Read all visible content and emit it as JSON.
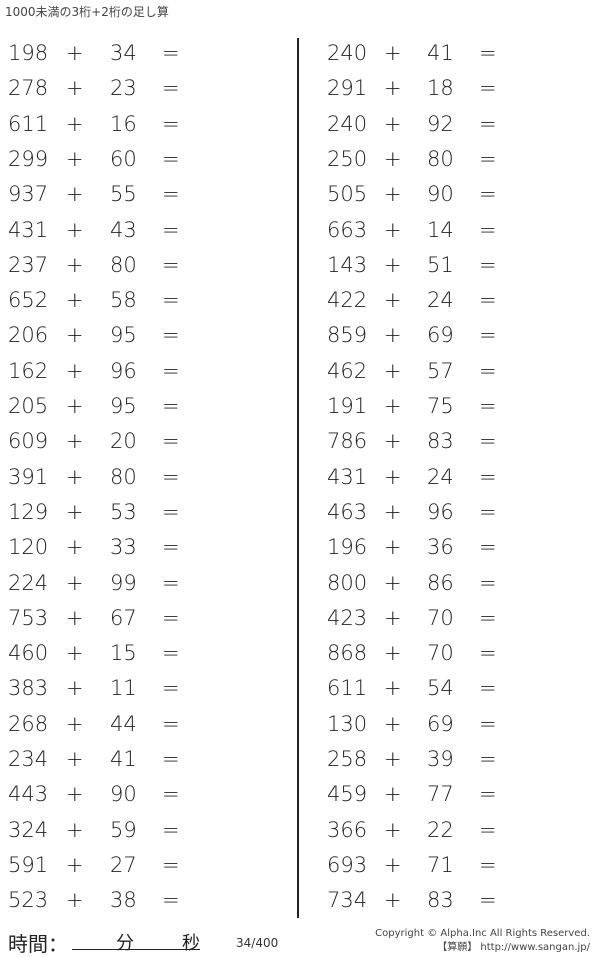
{
  "title": "1000未満の3桁+2桁の足し算",
  "operator": "+",
  "equals": "=",
  "left_column": [
    [
      "198",
      "34"
    ],
    [
      "278",
      "23"
    ],
    [
      "611",
      "16"
    ],
    [
      "299",
      "60"
    ],
    [
      "937",
      "55"
    ],
    [
      "431",
      "43"
    ],
    [
      "237",
      "80"
    ],
    [
      "652",
      "58"
    ],
    [
      "206",
      "95"
    ],
    [
      "162",
      "96"
    ],
    [
      "205",
      "95"
    ],
    [
      "609",
      "20"
    ],
    [
      "391",
      "80"
    ],
    [
      "129",
      "53"
    ],
    [
      "120",
      "33"
    ],
    [
      "224",
      "99"
    ],
    [
      "753",
      "67"
    ],
    [
      "460",
      "15"
    ],
    [
      "383",
      "11"
    ],
    [
      "268",
      "44"
    ],
    [
      "234",
      "41"
    ],
    [
      "443",
      "90"
    ],
    [
      "324",
      "59"
    ],
    [
      "591",
      "27"
    ],
    [
      "523",
      "38"
    ]
  ],
  "right_column": [
    [
      "240",
      "41"
    ],
    [
      "291",
      "18"
    ],
    [
      "240",
      "92"
    ],
    [
      "250",
      "80"
    ],
    [
      "505",
      "90"
    ],
    [
      "663",
      "14"
    ],
    [
      "143",
      "51"
    ],
    [
      "422",
      "24"
    ],
    [
      "859",
      "69"
    ],
    [
      "462",
      "57"
    ],
    [
      "191",
      "75"
    ],
    [
      "786",
      "83"
    ],
    [
      "431",
      "24"
    ],
    [
      "463",
      "96"
    ],
    [
      "196",
      "36"
    ],
    [
      "800",
      "86"
    ],
    [
      "423",
      "70"
    ],
    [
      "868",
      "70"
    ],
    [
      "611",
      "54"
    ],
    [
      "130",
      "69"
    ],
    [
      "258",
      "39"
    ],
    [
      "459",
      "77"
    ],
    [
      "366",
      "22"
    ],
    [
      "693",
      "71"
    ],
    [
      "734",
      "83"
    ]
  ],
  "footer": {
    "time_label": "時間：",
    "minutes": "分",
    "seconds": "秒",
    "page": "34/400",
    "copyright": "Copyright © Alpha.Inc All Rights Reserved.",
    "site": "【算願】 http://www.sangan.jp/"
  }
}
